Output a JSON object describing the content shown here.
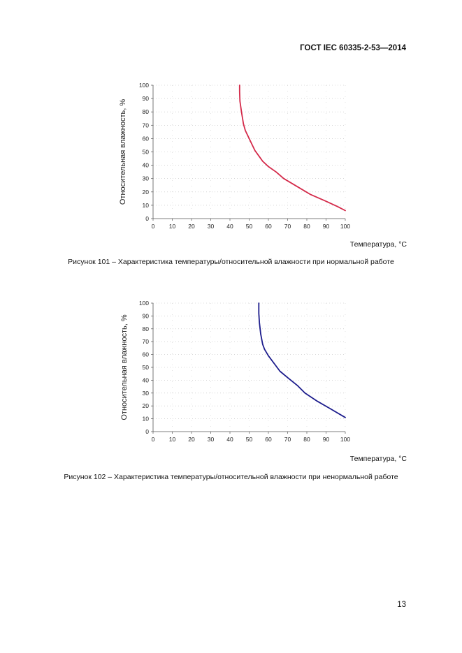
{
  "header": {
    "standard": "ГОСТ IEC 60335-2-53—2014"
  },
  "page_number": "13",
  "chart_data": [
    {
      "type": "line",
      "xlabel": "Температура, °C",
      "ylabel": "Относительная влажность, %",
      "caption": "Рисунок 101 – Характеристика температуры/относительной влажности при нормальной работе",
      "xlim": [
        0,
        100
      ],
      "ylim": [
        0,
        100
      ],
      "xticks": [
        "0",
        "10",
        "20",
        "30",
        "40",
        "50",
        "60",
        "70",
        "80",
        "90",
        "100"
      ],
      "yticks": [
        "0",
        "10",
        "20",
        "30",
        "40",
        "50",
        "60",
        "70",
        "80",
        "90",
        "100"
      ],
      "grid": true,
      "color": "#d42a4a",
      "x": [
        45,
        45,
        45.2,
        46,
        47,
        48,
        50,
        52,
        53,
        55,
        57,
        60,
        64,
        68,
        75,
        82,
        90,
        96,
        100
      ],
      "y": [
        100,
        95,
        88,
        80,
        71,
        66,
        60,
        54,
        51,
        47,
        43,
        39,
        35,
        30,
        24,
        18,
        13,
        9,
        6
      ]
    },
    {
      "type": "line",
      "xlabel": "Температура, °C",
      "ylabel": "Относительная влажность, %",
      "caption": "Рисунок 102 – Характеристика температуры/относительной влажности при ненормальной работе",
      "xlim": [
        0,
        100
      ],
      "ylim": [
        0,
        100
      ],
      "xticks": [
        "0",
        "10",
        "20",
        "30",
        "40",
        "50",
        "60",
        "70",
        "80",
        "90",
        "100"
      ],
      "yticks": [
        "0",
        "10",
        "20",
        "30",
        "40",
        "50",
        "60",
        "70",
        "80",
        "90",
        "100"
      ],
      "grid": true,
      "color": "#1c1c8c",
      "x": [
        55,
        55,
        55.3,
        56,
        57,
        58,
        60,
        63,
        66,
        70,
        75,
        79,
        85,
        92,
        100
      ],
      "y": [
        100,
        92,
        85,
        76,
        68,
        64,
        59,
        53,
        47,
        42,
        36,
        30,
        24,
        18,
        11
      ]
    }
  ]
}
